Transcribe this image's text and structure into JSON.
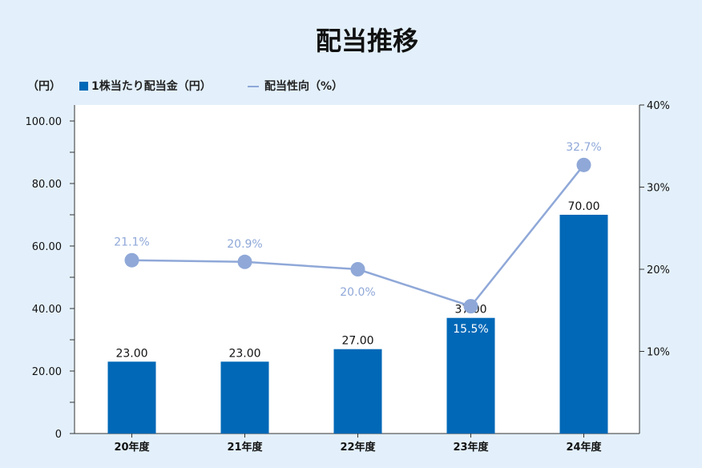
{
  "chart_data": {
    "type": "bar",
    "title": "配当推移",
    "y_unit": "（円）",
    "categories": [
      "20年度",
      "21年度",
      "22年度",
      "23年度",
      "24年度"
    ],
    "series": [
      {
        "name": "1株当たり配当金（円）",
        "type": "bar",
        "axis": "left",
        "values": [
          23.0,
          23.0,
          27.0,
          37.0,
          70.0
        ],
        "labels": [
          "23.00",
          "23.00",
          "27.00",
          "37.00",
          "70.00"
        ]
      },
      {
        "name": "配当性向（%）",
        "type": "line",
        "axis": "right",
        "values": [
          21.1,
          20.9,
          20.0,
          15.5,
          32.7
        ],
        "labels": [
          "21.1%",
          "20.9%",
          "20.0%",
          "15.5%",
          "32.7%"
        ]
      }
    ],
    "y_left": {
      "min": 0,
      "max": 100,
      "ticks": [
        "0",
        "20.00",
        "40.00",
        "60.00",
        "80.00",
        "100.00"
      ]
    },
    "y_right": {
      "min": 0,
      "max": 40,
      "ticks": [
        "10%",
        "20%",
        "30%",
        "40%"
      ]
    },
    "legend_position": "top-left",
    "grid": false
  },
  "colors": {
    "bar": "#0068b7",
    "line": "#8fa8d8",
    "background": "#e3f0fb",
    "plot": "#ffffff"
  }
}
